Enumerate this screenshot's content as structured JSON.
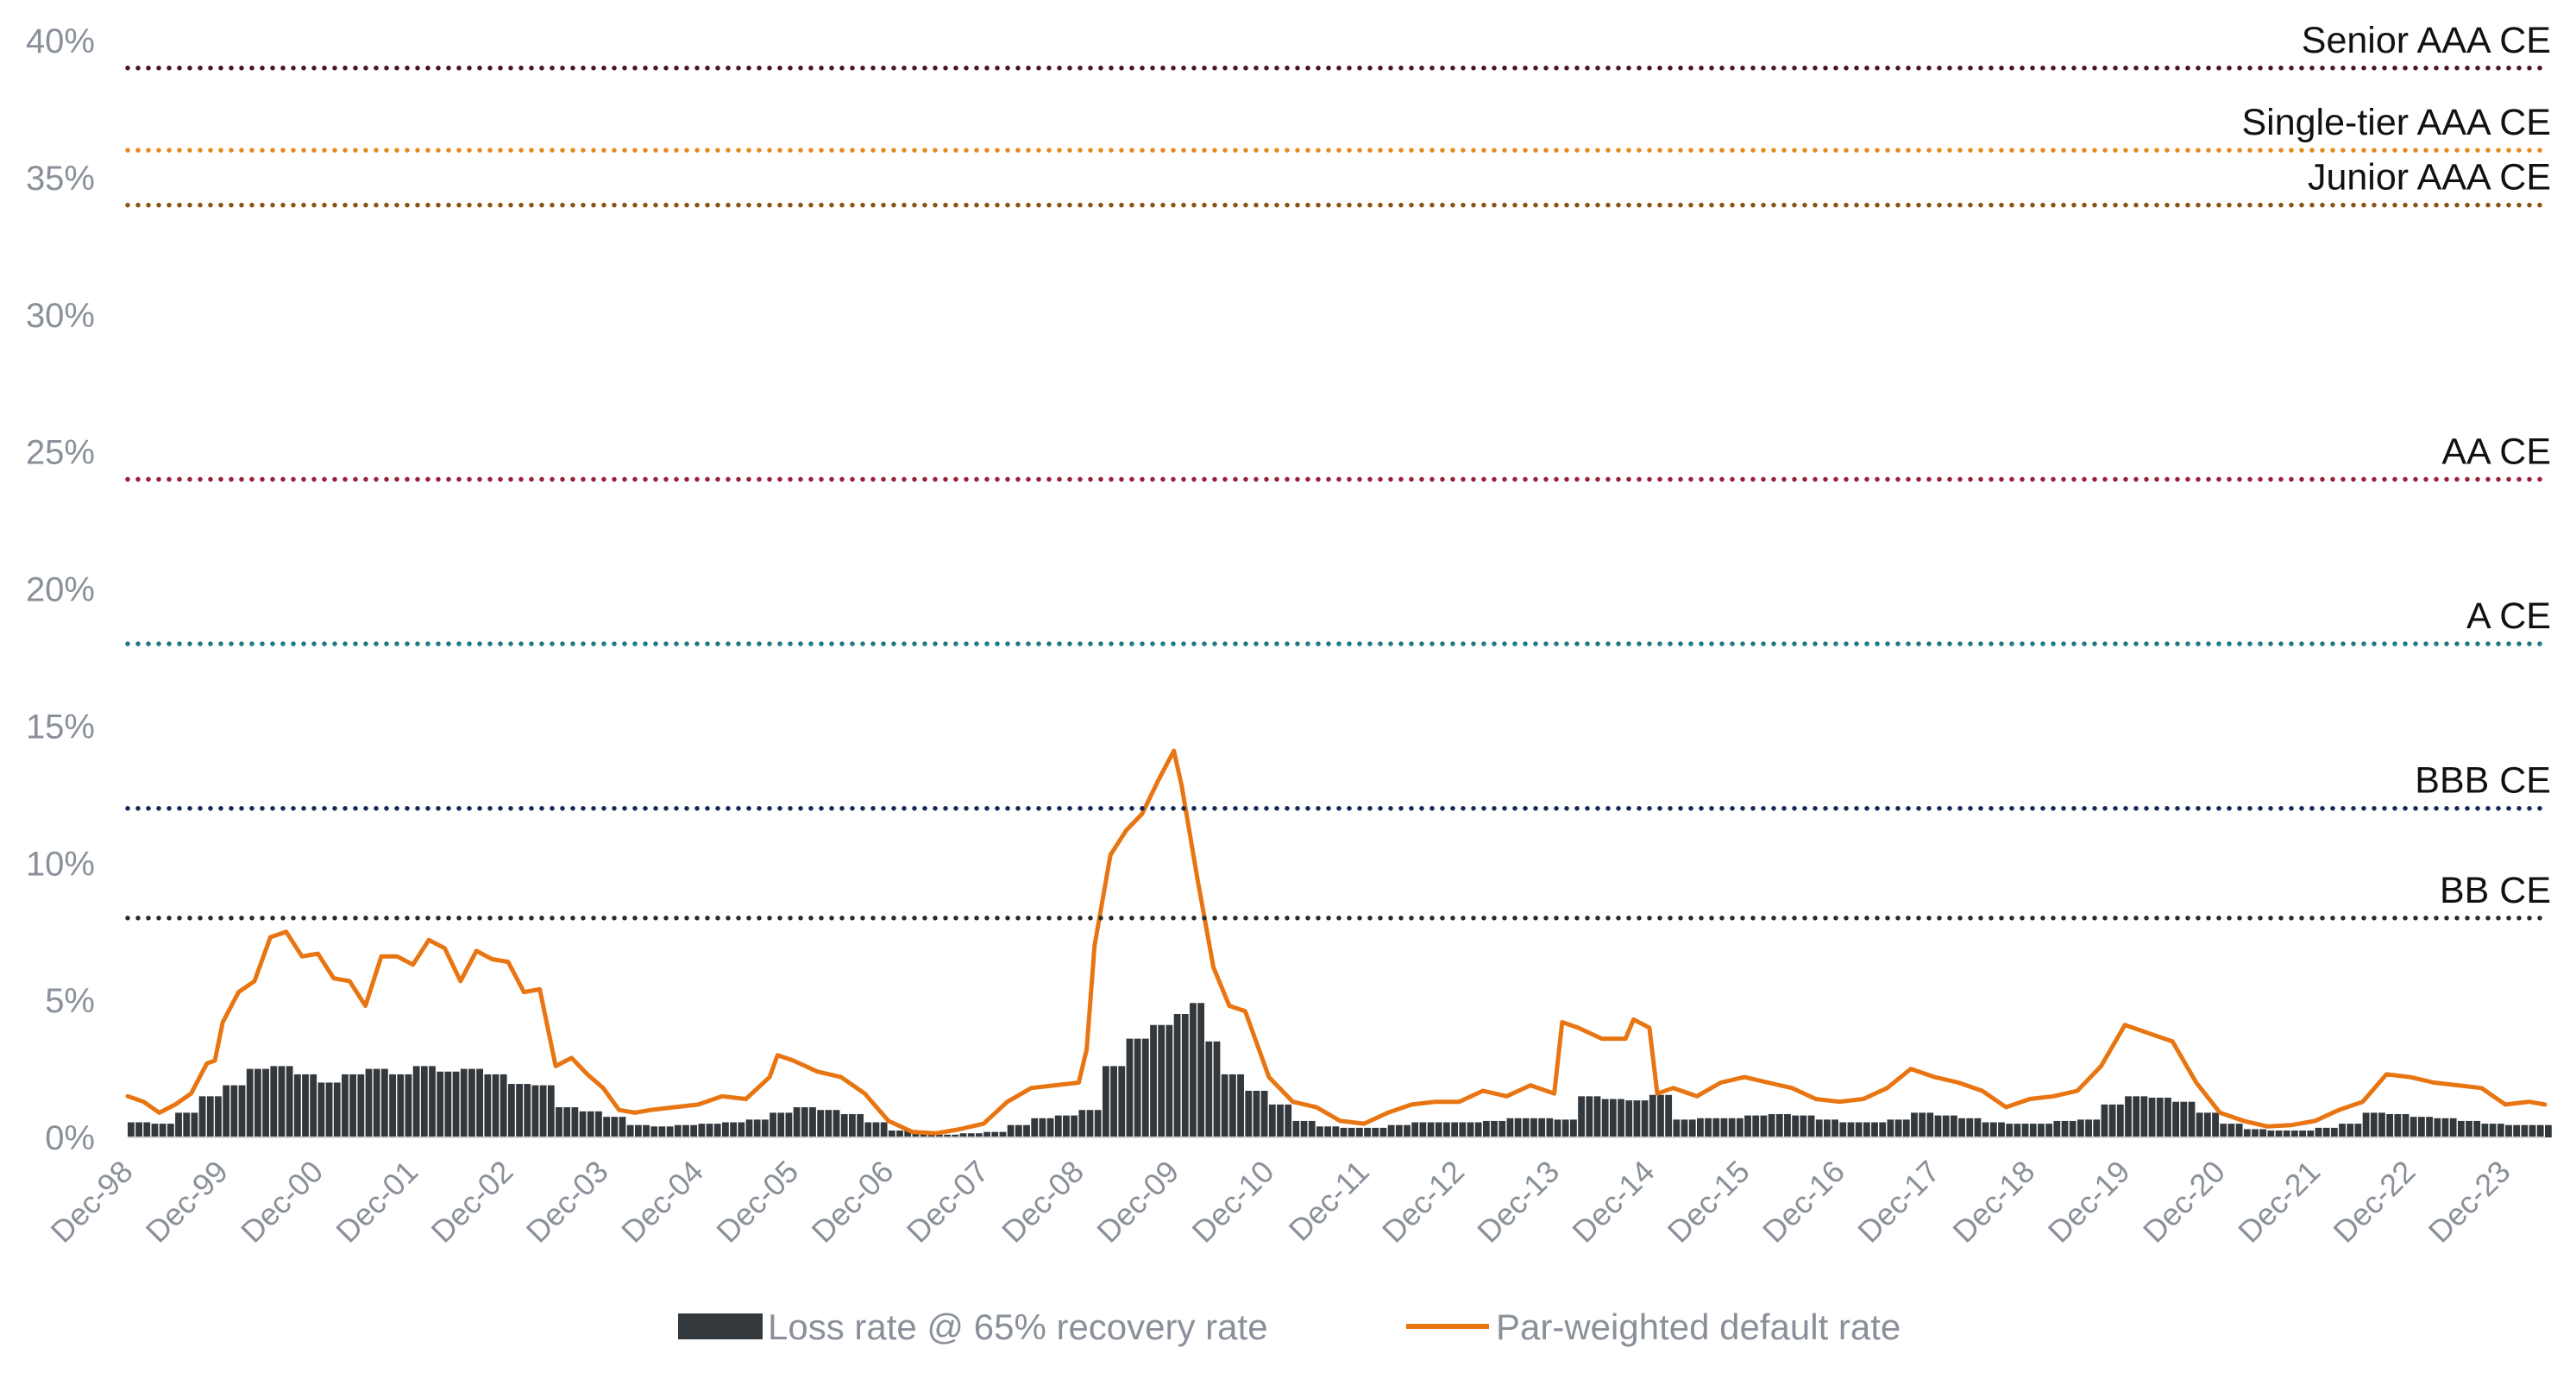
{
  "chart_data": {
    "type": "area",
    "title": "",
    "xlabel": "",
    "ylabel": "",
    "ylim": [
      0,
      40
    ],
    "y_ticks": [
      "0%",
      "5%",
      "10%",
      "15%",
      "20%",
      "25%",
      "30%",
      "35%",
      "40%"
    ],
    "x_ticks": [
      "Dec-98",
      "Dec-99",
      "Dec-00",
      "Dec-01",
      "Dec-02",
      "Dec-03",
      "Dec-04",
      "Dec-05",
      "Dec-06",
      "Dec-07",
      "Dec-08",
      "Dec-09",
      "Dec-10",
      "Dec-11",
      "Dec-12",
      "Dec-13",
      "Dec-14",
      "Dec-15",
      "Dec-16",
      "Dec-17",
      "Dec-18",
      "Dec-19",
      "Dec-20",
      "Dec-21",
      "Dec-22",
      "Dec-23"
    ],
    "x_start": "1998-12",
    "x_end": "2024-05",
    "grid": false,
    "legend_position": "bottom",
    "reference_lines": [
      {
        "label": "Senior AAA CE",
        "value": 39,
        "color": "#4a1424"
      },
      {
        "label": "Single-tier AAA CE",
        "value": 36,
        "color": "#e8871e"
      },
      {
        "label": "Junior AAA CE",
        "value": 34,
        "color": "#8a5410"
      },
      {
        "label": "AA CE",
        "value": 24,
        "color": "#9a1f3c"
      },
      {
        "label": "A CE",
        "value": 18,
        "color": "#1a7a80"
      },
      {
        "label": "BBB CE",
        "value": 12,
        "color": "#13285a"
      },
      {
        "label": "BB CE",
        "value": 8,
        "color": "#2b2b2b"
      }
    ],
    "series": [
      {
        "name": "Loss rate @ 65% recovery rate",
        "kind": "bar",
        "color": "#33383d",
        "points": [
          [
            "1998-12",
            0.55
          ],
          [
            "1999-03",
            0.5
          ],
          [
            "1999-06",
            0.9
          ],
          [
            "1999-09",
            1.5
          ],
          [
            "1999-12",
            1.9
          ],
          [
            "2000-03",
            2.5
          ],
          [
            "2000-06",
            2.6
          ],
          [
            "2000-09",
            2.3
          ],
          [
            "2000-12",
            2.0
          ],
          [
            "2001-03",
            2.3
          ],
          [
            "2001-06",
            2.5
          ],
          [
            "2001-09",
            2.3
          ],
          [
            "2001-12",
            2.6
          ],
          [
            "2002-03",
            2.4
          ],
          [
            "2002-06",
            2.5
          ],
          [
            "2002-09",
            2.3
          ],
          [
            "2002-12",
            1.95
          ],
          [
            "2003-03",
            1.9
          ],
          [
            "2003-06",
            1.1
          ],
          [
            "2003-09",
            0.95
          ],
          [
            "2003-12",
            0.75
          ],
          [
            "2004-03",
            0.45
          ],
          [
            "2004-06",
            0.4
          ],
          [
            "2004-09",
            0.45
          ],
          [
            "2004-12",
            0.5
          ],
          [
            "2005-03",
            0.55
          ],
          [
            "2005-06",
            0.65
          ],
          [
            "2005-09",
            0.9
          ],
          [
            "2005-12",
            1.1
          ],
          [
            "2006-03",
            1.0
          ],
          [
            "2006-06",
            0.85
          ],
          [
            "2006-09",
            0.55
          ],
          [
            "2006-12",
            0.25
          ],
          [
            "2007-03",
            0.15
          ],
          [
            "2007-06",
            0.1
          ],
          [
            "2007-09",
            0.15
          ],
          [
            "2007-12",
            0.2
          ],
          [
            "2008-03",
            0.45
          ],
          [
            "2008-06",
            0.7
          ],
          [
            "2008-09",
            0.8
          ],
          [
            "2008-12",
            1.0
          ],
          [
            "2009-03",
            2.6
          ],
          [
            "2009-06",
            3.6
          ],
          [
            "2009-09",
            4.1
          ],
          [
            "2009-12",
            4.5
          ],
          [
            "2010-02",
            4.9
          ],
          [
            "2010-04",
            3.5
          ],
          [
            "2010-06",
            2.3
          ],
          [
            "2010-09",
            1.7
          ],
          [
            "2010-12",
            1.2
          ],
          [
            "2011-03",
            0.6
          ],
          [
            "2011-06",
            0.4
          ],
          [
            "2011-09",
            0.35
          ],
          [
            "2011-12",
            0.35
          ],
          [
            "2012-03",
            0.45
          ],
          [
            "2012-06",
            0.55
          ],
          [
            "2012-09",
            0.55
          ],
          [
            "2012-12",
            0.55
          ],
          [
            "2013-03",
            0.6
          ],
          [
            "2013-06",
            0.7
          ],
          [
            "2013-09",
            0.7
          ],
          [
            "2013-12",
            0.65
          ],
          [
            "2014-03",
            1.5
          ],
          [
            "2014-06",
            1.4
          ],
          [
            "2014-09",
            1.35
          ],
          [
            "2014-12",
            1.55
          ],
          [
            "2015-03",
            0.65
          ],
          [
            "2015-06",
            0.7
          ],
          [
            "2015-09",
            0.7
          ],
          [
            "2015-12",
            0.8
          ],
          [
            "2016-03",
            0.85
          ],
          [
            "2016-06",
            0.8
          ],
          [
            "2016-09",
            0.65
          ],
          [
            "2016-12",
            0.55
          ],
          [
            "2017-03",
            0.55
          ],
          [
            "2017-06",
            0.65
          ],
          [
            "2017-09",
            0.9
          ],
          [
            "2017-12",
            0.8
          ],
          [
            "2018-03",
            0.7
          ],
          [
            "2018-06",
            0.55
          ],
          [
            "2018-09",
            0.5
          ],
          [
            "2018-12",
            0.5
          ],
          [
            "2019-03",
            0.6
          ],
          [
            "2019-06",
            0.65
          ],
          [
            "2019-09",
            1.2
          ],
          [
            "2019-12",
            1.5
          ],
          [
            "2020-03",
            1.45
          ],
          [
            "2020-06",
            1.3
          ],
          [
            "2020-09",
            0.9
          ],
          [
            "2020-12",
            0.5
          ],
          [
            "2021-03",
            0.3
          ],
          [
            "2021-06",
            0.25
          ],
          [
            "2021-09",
            0.25
          ],
          [
            "2021-12",
            0.35
          ],
          [
            "2022-03",
            0.5
          ],
          [
            "2022-06",
            0.9
          ],
          [
            "2022-09",
            0.85
          ],
          [
            "2022-12",
            0.75
          ],
          [
            "2023-03",
            0.7
          ],
          [
            "2023-06",
            0.6
          ],
          [
            "2023-09",
            0.5
          ],
          [
            "2023-12",
            0.45
          ],
          [
            "2024-05",
            0.45
          ]
        ]
      },
      {
        "name": "Par-weighted default rate",
        "kind": "line",
        "color": "#e87511",
        "points": [
          [
            "1998-12",
            1.5
          ],
          [
            "1999-02",
            1.3
          ],
          [
            "1999-04",
            0.9
          ],
          [
            "1999-06",
            1.2
          ],
          [
            "1999-08",
            1.6
          ],
          [
            "1999-10",
            2.7
          ],
          [
            "1999-11",
            2.8
          ],
          [
            "1999-12",
            4.2
          ],
          [
            "2000-02",
            5.3
          ],
          [
            "2000-04",
            5.7
          ],
          [
            "2000-06",
            7.3
          ],
          [
            "2000-08",
            7.5
          ],
          [
            "2000-10",
            6.6
          ],
          [
            "2000-12",
            6.7
          ],
          [
            "2001-02",
            5.8
          ],
          [
            "2001-04",
            5.7
          ],
          [
            "2001-06",
            4.8
          ],
          [
            "2001-08",
            6.6
          ],
          [
            "2001-10",
            6.6
          ],
          [
            "2001-12",
            6.3
          ],
          [
            "2002-02",
            7.2
          ],
          [
            "2002-04",
            6.9
          ],
          [
            "2002-06",
            5.7
          ],
          [
            "2002-08",
            6.8
          ],
          [
            "2002-10",
            6.5
          ],
          [
            "2002-12",
            6.4
          ],
          [
            "2003-02",
            5.3
          ],
          [
            "2003-04",
            5.4
          ],
          [
            "2003-06",
            2.6
          ],
          [
            "2003-08",
            2.9
          ],
          [
            "2003-10",
            2.3
          ],
          [
            "2003-12",
            1.8
          ],
          [
            "2004-02",
            1.0
          ],
          [
            "2004-04",
            0.9
          ],
          [
            "2004-06",
            1.0
          ],
          [
            "2004-09",
            1.1
          ],
          [
            "2004-12",
            1.2
          ],
          [
            "2005-03",
            1.5
          ],
          [
            "2005-06",
            1.4
          ],
          [
            "2005-09",
            2.2
          ],
          [
            "2005-10",
            3.0
          ],
          [
            "2005-12",
            2.8
          ],
          [
            "2006-03",
            2.4
          ],
          [
            "2006-06",
            2.2
          ],
          [
            "2006-09",
            1.6
          ],
          [
            "2006-12",
            0.6
          ],
          [
            "2007-03",
            0.2
          ],
          [
            "2007-06",
            0.15
          ],
          [
            "2007-09",
            0.3
          ],
          [
            "2007-12",
            0.5
          ],
          [
            "2008-03",
            1.3
          ],
          [
            "2008-06",
            1.8
          ],
          [
            "2008-09",
            1.9
          ],
          [
            "2008-12",
            2.0
          ],
          [
            "2009-01",
            3.2
          ],
          [
            "2009-02",
            7.0
          ],
          [
            "2009-04",
            10.3
          ],
          [
            "2009-06",
            11.2
          ],
          [
            "2009-08",
            11.8
          ],
          [
            "2009-10",
            13.0
          ],
          [
            "2009-12",
            14.1
          ],
          [
            "2010-01",
            12.8
          ],
          [
            "2010-03",
            9.4
          ],
          [
            "2010-05",
            6.2
          ],
          [
            "2010-07",
            4.8
          ],
          [
            "2010-09",
            4.6
          ],
          [
            "2010-12",
            2.2
          ],
          [
            "2011-03",
            1.3
          ],
          [
            "2011-06",
            1.1
          ],
          [
            "2011-09",
            0.6
          ],
          [
            "2011-12",
            0.5
          ],
          [
            "2012-03",
            0.9
          ],
          [
            "2012-06",
            1.2
          ],
          [
            "2012-09",
            1.3
          ],
          [
            "2012-12",
            1.3
          ],
          [
            "2013-03",
            1.7
          ],
          [
            "2013-06",
            1.5
          ],
          [
            "2013-09",
            1.9
          ],
          [
            "2013-12",
            1.6
          ],
          [
            "2014-01",
            4.2
          ],
          [
            "2014-03",
            4.0
          ],
          [
            "2014-06",
            3.6
          ],
          [
            "2014-09",
            3.6
          ],
          [
            "2014-10",
            4.3
          ],
          [
            "2014-12",
            4.0
          ],
          [
            "2015-01",
            1.6
          ],
          [
            "2015-03",
            1.8
          ],
          [
            "2015-06",
            1.5
          ],
          [
            "2015-09",
            2.0
          ],
          [
            "2015-12",
            2.2
          ],
          [
            "2016-03",
            2.0
          ],
          [
            "2016-06",
            1.8
          ],
          [
            "2016-09",
            1.4
          ],
          [
            "2016-12",
            1.3
          ],
          [
            "2017-03",
            1.4
          ],
          [
            "2017-06",
            1.8
          ],
          [
            "2017-09",
            2.5
          ],
          [
            "2017-12",
            2.2
          ],
          [
            "2018-03",
            2.0
          ],
          [
            "2018-06",
            1.7
          ],
          [
            "2018-09",
            1.1
          ],
          [
            "2018-12",
            1.4
          ],
          [
            "2019-03",
            1.5
          ],
          [
            "2019-06",
            1.7
          ],
          [
            "2019-09",
            2.6
          ],
          [
            "2019-12",
            4.1
          ],
          [
            "2020-03",
            3.8
          ],
          [
            "2020-06",
            3.5
          ],
          [
            "2020-09",
            2.0
          ],
          [
            "2020-12",
            0.9
          ],
          [
            "2021-03",
            0.6
          ],
          [
            "2021-06",
            0.4
          ],
          [
            "2021-09",
            0.45
          ],
          [
            "2021-12",
            0.6
          ],
          [
            "2022-03",
            1.0
          ],
          [
            "2022-06",
            1.3
          ],
          [
            "2022-09",
            2.3
          ],
          [
            "2022-12",
            2.2
          ],
          [
            "2023-03",
            2.0
          ],
          [
            "2023-06",
            1.9
          ],
          [
            "2023-09",
            1.8
          ],
          [
            "2023-12",
            1.2
          ],
          [
            "2024-03",
            1.3
          ],
          [
            "2024-05",
            1.2
          ]
        ]
      }
    ]
  }
}
